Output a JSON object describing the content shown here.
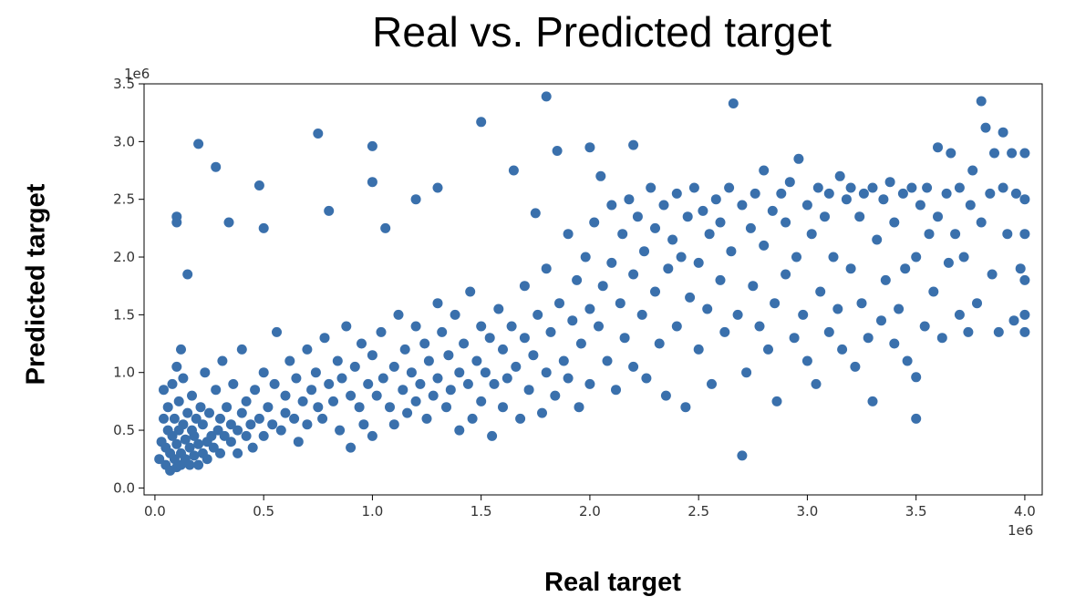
{
  "chart_data": {
    "type": "scatter",
    "title": "Real vs. Predicted target",
    "xlabel": "Real target",
    "ylabel": "Predicted target",
    "x_multiplier": "1e6",
    "y_multiplier": "1e6",
    "xlim": [
      -0.05,
      4.08
    ],
    "ylim": [
      -0.06,
      3.5
    ],
    "x_ticks": [
      "0.0",
      "0.5",
      "1.0",
      "1.5",
      "2.0",
      "2.5",
      "3.0",
      "3.5",
      "4.0"
    ],
    "y_ticks": [
      "0.0",
      "0.5",
      "1.0",
      "1.5",
      "2.0",
      "2.5",
      "3.0",
      "3.5"
    ],
    "grid": false,
    "legend": "none",
    "marker_color": "#3a70ac",
    "note": "Dense cloud of several thousand points, approximated by a representative sample.",
    "points": [
      [
        0.02,
        0.25
      ],
      [
        0.03,
        0.4
      ],
      [
        0.04,
        0.6
      ],
      [
        0.04,
        0.85
      ],
      [
        0.05,
        0.2
      ],
      [
        0.05,
        0.35
      ],
      [
        0.06,
        0.5
      ],
      [
        0.06,
        0.7
      ],
      [
        0.07,
        0.15
      ],
      [
        0.07,
        0.3
      ],
      [
        0.08,
        0.45
      ],
      [
        0.08,
        0.9
      ],
      [
        0.09,
        0.25
      ],
      [
        0.09,
        0.6
      ],
      [
        0.1,
        0.18
      ],
      [
        0.1,
        0.38
      ],
      [
        0.1,
        1.05
      ],
      [
        0.1,
        2.35
      ],
      [
        0.1,
        2.3
      ],
      [
        0.11,
        0.5
      ],
      [
        0.11,
        0.75
      ],
      [
        0.12,
        0.2
      ],
      [
        0.12,
        0.3
      ],
      [
        0.12,
        1.2
      ],
      [
        0.13,
        0.55
      ],
      [
        0.13,
        0.95
      ],
      [
        0.14,
        0.25
      ],
      [
        0.14,
        0.42
      ],
      [
        0.15,
        0.65
      ],
      [
        0.15,
        1.85
      ],
      [
        0.16,
        0.2
      ],
      [
        0.16,
        0.35
      ],
      [
        0.17,
        0.5
      ],
      [
        0.17,
        0.8
      ],
      [
        0.18,
        0.28
      ],
      [
        0.18,
        0.45
      ],
      [
        0.19,
        0.6
      ],
      [
        0.2,
        2.98
      ],
      [
        0.2,
        0.2
      ],
      [
        0.2,
        0.38
      ],
      [
        0.21,
        0.7
      ],
      [
        0.22,
        0.3
      ],
      [
        0.22,
        0.55
      ],
      [
        0.23,
        1.0
      ],
      [
        0.24,
        0.4
      ],
      [
        0.24,
        0.25
      ],
      [
        0.25,
        0.65
      ],
      [
        0.26,
        0.45
      ],
      [
        0.27,
        0.35
      ],
      [
        0.28,
        2.78
      ],
      [
        0.28,
        0.85
      ],
      [
        0.29,
        0.5
      ],
      [
        0.3,
        0.3
      ],
      [
        0.3,
        0.6
      ],
      [
        0.31,
        1.1
      ],
      [
        0.32,
        0.45
      ],
      [
        0.33,
        0.7
      ],
      [
        0.34,
        2.3
      ],
      [
        0.35,
        0.4
      ],
      [
        0.35,
        0.55
      ],
      [
        0.36,
        0.9
      ],
      [
        0.38,
        0.5
      ],
      [
        0.38,
        0.3
      ],
      [
        0.4,
        0.65
      ],
      [
        0.4,
        1.2
      ],
      [
        0.42,
        0.45
      ],
      [
        0.42,
        0.75
      ],
      [
        0.44,
        0.55
      ],
      [
        0.45,
        0.35
      ],
      [
        0.46,
        0.85
      ],
      [
        0.48,
        2.62
      ],
      [
        0.48,
        0.6
      ],
      [
        0.5,
        0.45
      ],
      [
        0.5,
        1.0
      ],
      [
        0.5,
        2.25
      ],
      [
        0.52,
        0.7
      ],
      [
        0.54,
        0.55
      ],
      [
        0.55,
        0.9
      ],
      [
        0.56,
        1.35
      ],
      [
        0.58,
        0.5
      ],
      [
        0.6,
        0.8
      ],
      [
        0.6,
        0.65
      ],
      [
        0.62,
        1.1
      ],
      [
        0.64,
        0.6
      ],
      [
        0.65,
        0.95
      ],
      [
        0.66,
        0.4
      ],
      [
        0.68,
        0.75
      ],
      [
        0.7,
        1.2
      ],
      [
        0.7,
        0.55
      ],
      [
        0.72,
        0.85
      ],
      [
        0.74,
        1.0
      ],
      [
        0.75,
        3.07
      ],
      [
        0.75,
        0.7
      ],
      [
        0.77,
        0.6
      ],
      [
        0.78,
        1.3
      ],
      [
        0.8,
        0.9
      ],
      [
        0.8,
        2.4
      ],
      [
        0.82,
        0.75
      ],
      [
        0.84,
        1.1
      ],
      [
        0.85,
        0.5
      ],
      [
        0.86,
        0.95
      ],
      [
        0.88,
        1.4
      ],
      [
        0.9,
        0.8
      ],
      [
        0.9,
        0.35
      ],
      [
        0.92,
        1.05
      ],
      [
        0.94,
        0.7
      ],
      [
        0.95,
        1.25
      ],
      [
        0.96,
        0.55
      ],
      [
        0.98,
        0.9
      ],
      [
        1.0,
        2.96
      ],
      [
        1.0,
        2.65
      ],
      [
        1.0,
        1.15
      ],
      [
        1.0,
        0.45
      ],
      [
        1.02,
        0.8
      ],
      [
        1.04,
        1.35
      ],
      [
        1.05,
        0.95
      ],
      [
        1.06,
        2.25
      ],
      [
        1.08,
        0.7
      ],
      [
        1.1,
        1.05
      ],
      [
        1.1,
        0.55
      ],
      [
        1.12,
        1.5
      ],
      [
        1.14,
        0.85
      ],
      [
        1.15,
        1.2
      ],
      [
        1.16,
        0.65
      ],
      [
        1.18,
        1.0
      ],
      [
        1.2,
        2.5
      ],
      [
        1.2,
        1.4
      ],
      [
        1.2,
        0.75
      ],
      [
        1.22,
        0.9
      ],
      [
        1.24,
        1.25
      ],
      [
        1.25,
        0.6
      ],
      [
        1.26,
        1.1
      ],
      [
        1.28,
        0.8
      ],
      [
        1.3,
        1.6
      ],
      [
        1.3,
        2.6
      ],
      [
        1.3,
        0.95
      ],
      [
        1.32,
        1.35
      ],
      [
        1.34,
        0.7
      ],
      [
        1.35,
        1.15
      ],
      [
        1.36,
        0.85
      ],
      [
        1.38,
        1.5
      ],
      [
        1.4,
        0.5
      ],
      [
        1.4,
        1.0
      ],
      [
        1.42,
        1.25
      ],
      [
        1.44,
        0.9
      ],
      [
        1.45,
        1.7
      ],
      [
        1.46,
        0.6
      ],
      [
        1.48,
        1.1
      ],
      [
        1.5,
        3.17
      ],
      [
        1.5,
        1.4
      ],
      [
        1.5,
        0.75
      ],
      [
        1.52,
        1.0
      ],
      [
        1.54,
        1.3
      ],
      [
        1.55,
        0.45
      ],
      [
        1.56,
        0.9
      ],
      [
        1.58,
        1.55
      ],
      [
        1.6,
        1.2
      ],
      [
        1.6,
        0.7
      ],
      [
        1.62,
        0.95
      ],
      [
        1.64,
        1.4
      ],
      [
        1.65,
        2.75
      ],
      [
        1.66,
        1.05
      ],
      [
        1.68,
        0.6
      ],
      [
        1.7,
        1.3
      ],
      [
        1.7,
        1.75
      ],
      [
        1.72,
        0.85
      ],
      [
        1.74,
        1.15
      ],
      [
        1.75,
        2.38
      ],
      [
        1.76,
        1.5
      ],
      [
        1.78,
        0.65
      ],
      [
        1.8,
        3.39
      ],
      [
        1.8,
        1.0
      ],
      [
        1.8,
        1.9
      ],
      [
        1.82,
        1.35
      ],
      [
        1.84,
        0.8
      ],
      [
        1.85,
        2.92
      ],
      [
        1.86,
        1.6
      ],
      [
        1.88,
        1.1
      ],
      [
        1.9,
        2.2
      ],
      [
        1.9,
        0.95
      ],
      [
        1.92,
        1.45
      ],
      [
        1.94,
        1.8
      ],
      [
        1.95,
        0.7
      ],
      [
        1.96,
        1.25
      ],
      [
        1.98,
        2.0
      ],
      [
        2.0,
        2.95
      ],
      [
        2.0,
        1.55
      ],
      [
        2.0,
        0.9
      ],
      [
        2.02,
        2.3
      ],
      [
        2.04,
        1.4
      ],
      [
        2.05,
        2.7
      ],
      [
        2.06,
        1.75
      ],
      [
        2.08,
        1.1
      ],
      [
        2.1,
        2.45
      ],
      [
        2.1,
        1.95
      ],
      [
        2.12,
        0.85
      ],
      [
        2.14,
        1.6
      ],
      [
        2.15,
        2.2
      ],
      [
        2.16,
        1.3
      ],
      [
        2.18,
        2.5
      ],
      [
        2.2,
        2.97
      ],
      [
        2.2,
        1.85
      ],
      [
        2.2,
        1.05
      ],
      [
        2.22,
        2.35
      ],
      [
        2.24,
        1.5
      ],
      [
        2.25,
        2.05
      ],
      [
        2.26,
        0.95
      ],
      [
        2.28,
        2.6
      ],
      [
        2.3,
        1.7
      ],
      [
        2.3,
        2.25
      ],
      [
        2.32,
        1.25
      ],
      [
        2.34,
        2.45
      ],
      [
        2.35,
        0.8
      ],
      [
        2.36,
        1.9
      ],
      [
        2.38,
        2.15
      ],
      [
        2.4,
        1.4
      ],
      [
        2.4,
        2.55
      ],
      [
        2.42,
        2.0
      ],
      [
        2.44,
        0.7
      ],
      [
        2.45,
        2.35
      ],
      [
        2.46,
        1.65
      ],
      [
        2.48,
        2.6
      ],
      [
        2.5,
        1.95
      ],
      [
        2.5,
        1.2
      ],
      [
        2.52,
        2.4
      ],
      [
        2.54,
        1.55
      ],
      [
        2.55,
        2.2
      ],
      [
        2.56,
        0.9
      ],
      [
        2.58,
        2.5
      ],
      [
        2.6,
        1.8
      ],
      [
        2.6,
        2.3
      ],
      [
        2.62,
        1.35
      ],
      [
        2.64,
        2.6
      ],
      [
        2.65,
        2.05
      ],
      [
        2.66,
        3.33
      ],
      [
        2.68,
        1.5
      ],
      [
        2.7,
        0.28
      ],
      [
        2.7,
        2.45
      ],
      [
        2.72,
        1.0
      ],
      [
        2.74,
        2.25
      ],
      [
        2.75,
        1.75
      ],
      [
        2.76,
        2.55
      ],
      [
        2.78,
        1.4
      ],
      [
        2.8,
        2.75
      ],
      [
        2.8,
        2.1
      ],
      [
        2.82,
        1.2
      ],
      [
        2.84,
        2.4
      ],
      [
        2.85,
        1.6
      ],
      [
        2.86,
        0.75
      ],
      [
        2.88,
        2.55
      ],
      [
        2.9,
        1.85
      ],
      [
        2.9,
        2.3
      ],
      [
        2.92,
        2.65
      ],
      [
        2.94,
        1.3
      ],
      [
        2.95,
        2.0
      ],
      [
        2.96,
        2.85
      ],
      [
        2.98,
        1.5
      ],
      [
        3.0,
        2.45
      ],
      [
        3.0,
        1.1
      ],
      [
        3.02,
        2.2
      ],
      [
        3.04,
        0.9
      ],
      [
        3.05,
        2.6
      ],
      [
        3.06,
        1.7
      ],
      [
        3.08,
        2.35
      ],
      [
        3.1,
        1.35
      ],
      [
        3.1,
        2.55
      ],
      [
        3.12,
        2.0
      ],
      [
        3.14,
        1.55
      ],
      [
        3.15,
        2.7
      ],
      [
        3.16,
        1.2
      ],
      [
        3.18,
        2.5
      ],
      [
        3.2,
        1.9
      ],
      [
        3.2,
        2.6
      ],
      [
        3.22,
        1.05
      ],
      [
        3.24,
        2.35
      ],
      [
        3.25,
        1.6
      ],
      [
        3.26,
        2.55
      ],
      [
        3.28,
        1.3
      ],
      [
        3.3,
        0.75
      ],
      [
        3.3,
        2.6
      ],
      [
        3.32,
        2.15
      ],
      [
        3.34,
        1.45
      ],
      [
        3.35,
        2.5
      ],
      [
        3.36,
        1.8
      ],
      [
        3.38,
        2.65
      ],
      [
        3.4,
        1.25
      ],
      [
        3.4,
        2.3
      ],
      [
        3.42,
        1.55
      ],
      [
        3.44,
        2.55
      ],
      [
        3.45,
        1.9
      ],
      [
        3.46,
        1.1
      ],
      [
        3.48,
        2.6
      ],
      [
        3.5,
        0.96
      ],
      [
        3.5,
        0.6
      ],
      [
        3.5,
        2.0
      ],
      [
        3.52,
        2.45
      ],
      [
        3.54,
        1.4
      ],
      [
        3.55,
        2.6
      ],
      [
        3.56,
        2.2
      ],
      [
        3.58,
        1.7
      ],
      [
        3.6,
        2.95
      ],
      [
        3.6,
        2.35
      ],
      [
        3.62,
        1.3
      ],
      [
        3.64,
        2.55
      ],
      [
        3.65,
        1.95
      ],
      [
        3.66,
        2.9
      ],
      [
        3.68,
        2.2
      ],
      [
        3.7,
        1.5
      ],
      [
        3.7,
        2.6
      ],
      [
        3.72,
        2.0
      ],
      [
        3.74,
        1.35
      ],
      [
        3.75,
        2.45
      ],
      [
        3.76,
        2.75
      ],
      [
        3.78,
        1.6
      ],
      [
        3.8,
        3.35
      ],
      [
        3.8,
        2.3
      ],
      [
        3.82,
        3.12
      ],
      [
        3.84,
        2.55
      ],
      [
        3.85,
        1.85
      ],
      [
        3.86,
        2.9
      ],
      [
        3.88,
        1.35
      ],
      [
        3.9,
        2.6
      ],
      [
        3.9,
        3.08
      ],
      [
        3.92,
        2.2
      ],
      [
        3.94,
        2.9
      ],
      [
        3.95,
        1.45
      ],
      [
        3.96,
        2.55
      ],
      [
        3.98,
        1.9
      ],
      [
        4.0,
        2.9
      ],
      [
        4.0,
        2.5
      ],
      [
        4.0,
        1.8
      ],
      [
        4.0,
        1.5
      ],
      [
        4.0,
        1.35
      ],
      [
        4.0,
        2.2
      ]
    ]
  }
}
